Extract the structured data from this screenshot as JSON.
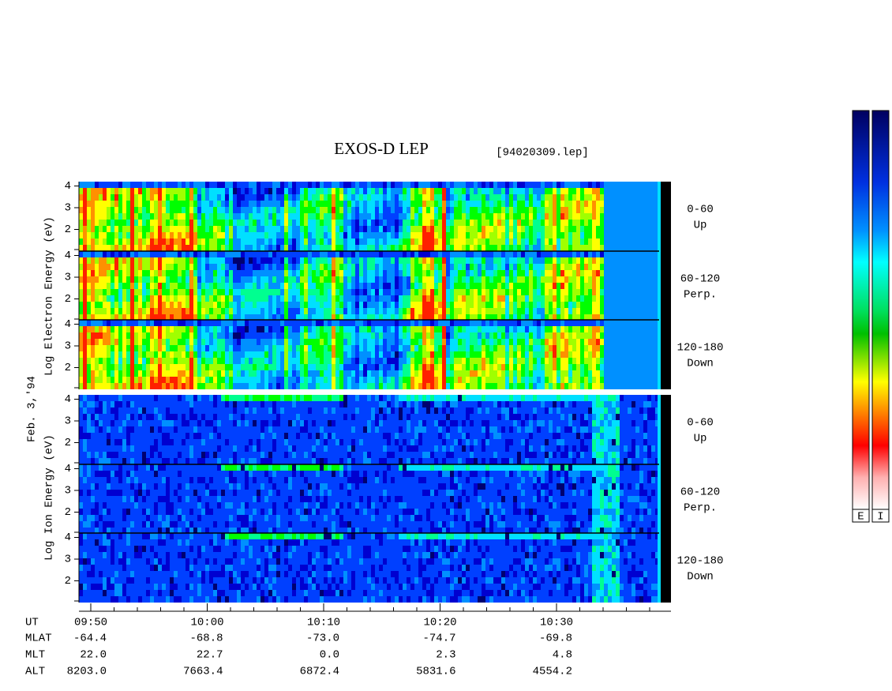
{
  "title": "EXOS-D LEP",
  "file": "[94020309.lep]",
  "date": "Feb. 3,'94",
  "electron_label": "Log Electron Energy (eV)",
  "ion_label": "Log Ion Energy (eV)",
  "ylim": [
    1,
    4.2
  ],
  "panels": [
    {
      "species": "electron",
      "yticks": [
        2,
        3,
        4
      ],
      "range": "0-60",
      "direction": "Up"
    },
    {
      "species": "electron",
      "yticks": [
        2,
        3,
        4
      ],
      "range": "60-120",
      "direction": "Perp."
    },
    {
      "species": "electron",
      "yticks": [
        2,
        3,
        4
      ],
      "range": "120-180",
      "direction": "Down"
    },
    {
      "species": "ion",
      "yticks": [
        2,
        3,
        4
      ],
      "range": "0-60",
      "direction": "Up"
    },
    {
      "species": "ion",
      "yticks": [
        2,
        3,
        4
      ],
      "range": "60-120",
      "direction": "Perp."
    },
    {
      "species": "ion",
      "yticks": [
        2,
        3,
        4
      ],
      "range": "120-180",
      "direction": "Down"
    }
  ],
  "axis_rows": [
    {
      "name": "UT",
      "values": [
        "09:50",
        "10:00",
        "10:10",
        "10:20",
        "10:30"
      ]
    },
    {
      "name": "MLAT",
      "values": [
        "-64.4",
        "-68.8",
        "-73.0",
        "-74.7",
        "-69.8"
      ]
    },
    {
      "name": "MLT",
      "values": [
        "22.0",
        "22.7",
        "0.0",
        "2.3",
        "4.8"
      ]
    },
    {
      "name": "ALT",
      "values": [
        "8203.0",
        "7663.4",
        "6872.4",
        "5831.6",
        "4554.2"
      ]
    }
  ],
  "colorbars": [
    "E",
    "I"
  ]
}
